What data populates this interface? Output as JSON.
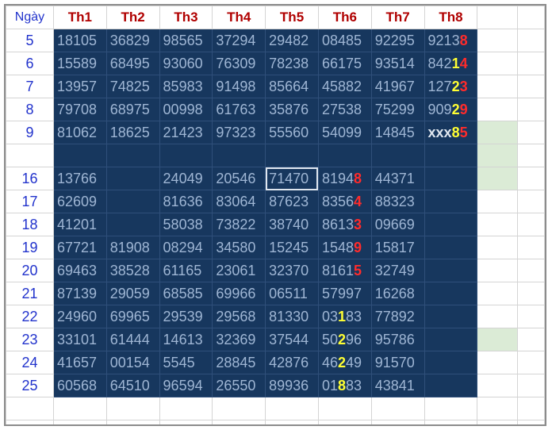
{
  "header": {
    "day_label": "Ngày",
    "columns": [
      "Th1",
      "Th2",
      "Th3",
      "Th4",
      "Th5",
      "Th6",
      "Th7",
      "Th8"
    ]
  },
  "colors": {
    "cell_fill": "#17375e",
    "cell_text": "#9fb6d4",
    "highlight_yellow": "#ffff33",
    "highlight_red": "#ff2b2b",
    "header_text": "#b00000",
    "day_text": "#2233cc",
    "side_green": "#dbebd6"
  },
  "rows": [
    {
      "day": "5",
      "cells": [
        "18105",
        "36829",
        "98565",
        "37294",
        "29482",
        "08485",
        "92295",
        [
          [
            "9213",
            ""
          ],
          [
            "8",
            "r"
          ]
        ]
      ]
    },
    {
      "day": "6",
      "cells": [
        "15589",
        "68495",
        "93060",
        "76309",
        "78238",
        "66175",
        "93514",
        [
          [
            "842",
            ""
          ],
          [
            "1",
            "y"
          ],
          [
            "4",
            "r"
          ]
        ]
      ]
    },
    {
      "day": "7",
      "cells": [
        "13957",
        "74825",
        "85983",
        "91498",
        "85664",
        "45882",
        "41967",
        [
          [
            "127",
            ""
          ],
          [
            "2",
            "y"
          ],
          [
            "3",
            "r"
          ]
        ]
      ]
    },
    {
      "day": "8",
      "cells": [
        "79708",
        "68975",
        "00998",
        "61763",
        "35876",
        "27538",
        "75299",
        [
          [
            "909",
            ""
          ],
          [
            "2",
            "y"
          ],
          [
            "9",
            "r"
          ]
        ]
      ]
    },
    {
      "day": "9",
      "cells": [
        "81062",
        "18625",
        "21423",
        "97323",
        "55560",
        "54099",
        "14845",
        [
          [
            "xxx",
            "w"
          ],
          [
            "8",
            "y"
          ],
          [
            "5",
            "r"
          ]
        ]
      ]
    },
    {
      "day": "",
      "cells": [
        "",
        "",
        "",
        "",
        "",
        "",
        "",
        ""
      ]
    },
    {
      "day": "16",
      "cells": [
        "13766",
        "",
        "24049",
        "20546",
        "71470",
        [
          [
            "8194",
            ""
          ],
          [
            "8",
            "r"
          ]
        ],
        "44371",
        ""
      ]
    },
    {
      "day": "17",
      "cells": [
        "62609",
        "",
        "81636",
        "83064",
        "87623",
        [
          [
            "8356",
            ""
          ],
          [
            "4",
            "r"
          ]
        ],
        "88323",
        ""
      ]
    },
    {
      "day": "18",
      "cells": [
        "41201",
        "",
        "58038",
        "73822",
        "38740",
        [
          [
            "8613",
            ""
          ],
          [
            "3",
            "r"
          ]
        ],
        "09669",
        ""
      ]
    },
    {
      "day": "19",
      "cells": [
        "67721",
        "81908",
        "08294",
        "34580",
        "15245",
        [
          [
            "1548",
            ""
          ],
          [
            "9",
            "r"
          ]
        ],
        "15817",
        ""
      ]
    },
    {
      "day": "20",
      "cells": [
        "69463",
        "38528",
        "61165",
        "23061",
        "32370",
        [
          [
            "8161",
            ""
          ],
          [
            "5",
            "r"
          ]
        ],
        "32749",
        ""
      ]
    },
    {
      "day": "21",
      "cells": [
        "87139",
        "29059",
        "68585",
        "69966",
        "06511",
        "57997",
        "16268",
        ""
      ]
    },
    {
      "day": "22",
      "cells": [
        "24960",
        "69965",
        "29539",
        "29568",
        "81330",
        [
          [
            "03",
            ""
          ],
          [
            "1",
            "y"
          ],
          [
            "83",
            ""
          ]
        ],
        "77892",
        ""
      ]
    },
    {
      "day": "23",
      "cells": [
        "33101",
        "61444",
        "14613",
        "32369",
        "37544",
        [
          [
            "50",
            ""
          ],
          [
            "2",
            "y"
          ],
          [
            "96",
            ""
          ]
        ],
        "95786",
        ""
      ]
    },
    {
      "day": "24",
      "cells": [
        "41657",
        "00154",
        "5545",
        "28845",
        "42876",
        [
          [
            "46",
            ""
          ],
          [
            "2",
            "y"
          ],
          [
            "49",
            ""
          ]
        ],
        "91570",
        ""
      ]
    },
    {
      "day": "25",
      "cells": [
        "60568",
        "64510",
        "96594",
        "26550",
        "89936",
        [
          [
            "01",
            ""
          ],
          [
            "8",
            "y"
          ],
          [
            "83",
            ""
          ]
        ],
        "43841",
        ""
      ]
    }
  ]
}
